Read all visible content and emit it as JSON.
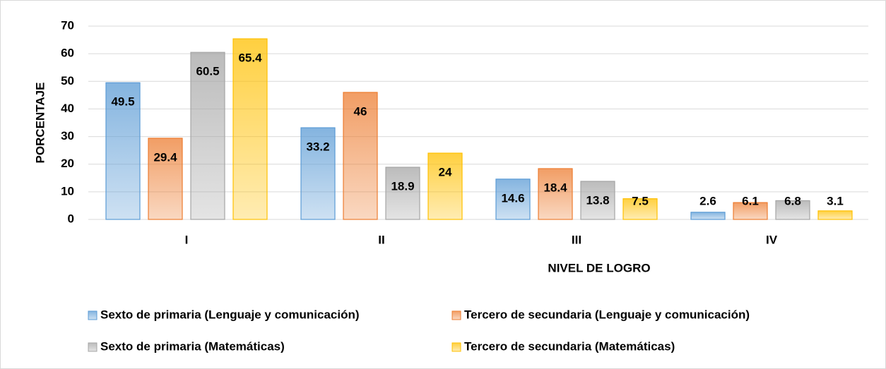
{
  "chart_data": {
    "type": "bar",
    "x_label": "NIVEL DE LOGRO",
    "y_label": "PORCENTAJE",
    "categories": [
      "I",
      "II",
      "III",
      "IV"
    ],
    "series": [
      {
        "name": "Sexto de primaria (Lenguaje y comunicación)",
        "color": "#5b9bd5",
        "values": [
          49.5,
          33.2,
          14.6,
          2.6
        ]
      },
      {
        "name": "Tercero de secundaria (Lenguaje y comunicación)",
        "color": "#ed7d31",
        "values": [
          29.4,
          46,
          18.4,
          6.1
        ]
      },
      {
        "name": "Sexto de primaria (Matemáticas)",
        "color": "#a5a5a5",
        "values": [
          60.5,
          18.9,
          13.8,
          6.8
        ]
      },
      {
        "name": "Tercero de secundaria (Matemáticas)",
        "color": "#ffc000",
        "values": [
          65.4,
          24,
          7.5,
          3.1
        ]
      }
    ],
    "ylim": [
      0,
      70
    ],
    "yticks": [
      0,
      10,
      20,
      30,
      40,
      50,
      60,
      70
    ],
    "grid": true,
    "legend": "bottom"
  }
}
